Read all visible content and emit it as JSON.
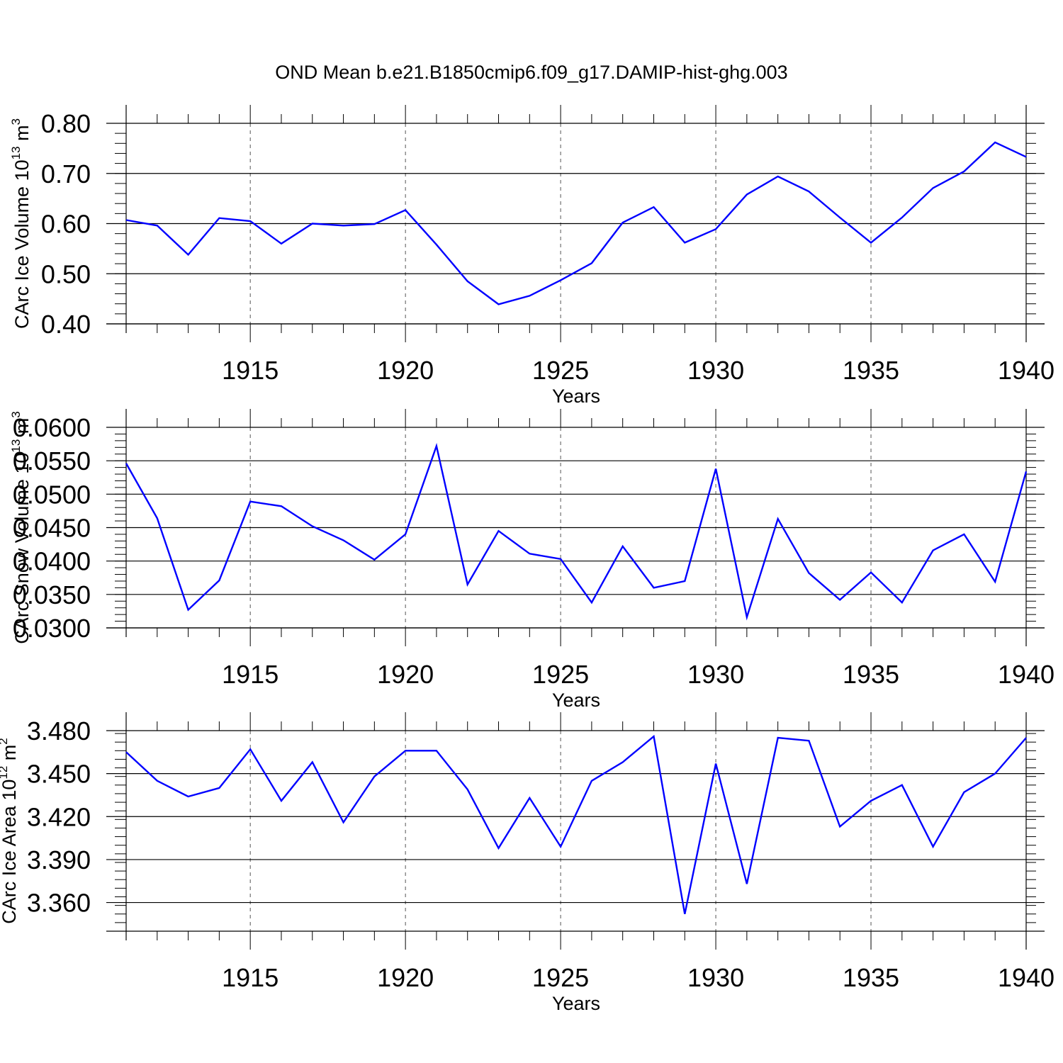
{
  "title": "OND Mean b.e21.B1850cmip6.f09_g17.DAMIP-hist-ghg.003",
  "chart_data": [
    {
      "type": "line",
      "ylabel_main": "CArc Ice Volume 10",
      "ylabel_exp": "13",
      "ylabel_unit": " m",
      "ylabel_unit_exp": "3",
      "xlabel": "Years",
      "ylim": [
        0.4,
        0.8
      ],
      "xlim": [
        1911,
        1940
      ],
      "yticks": [
        0.4,
        0.5,
        0.6,
        0.7,
        0.8
      ],
      "ytick_labels": [
        "0.40",
        "0.50",
        "0.60",
        "0.70",
        "0.80"
      ],
      "xticks": [
        1915,
        1920,
        1925,
        1930,
        1935,
        1940
      ],
      "x": [
        1911,
        1912,
        1913,
        1914,
        1915,
        1916,
        1917,
        1918,
        1919,
        1920,
        1921,
        1922,
        1923,
        1924,
        1925,
        1926,
        1927,
        1928,
        1929,
        1930,
        1931,
        1932,
        1933,
        1934,
        1935,
        1936,
        1937,
        1938,
        1939,
        1940
      ],
      "series": [
        {
          "name": "CArc Ice Volume",
          "color": "#0000ff",
          "values": [
            0.607,
            0.596,
            0.538,
            0.611,
            0.605,
            0.56,
            0.6,
            0.596,
            0.599,
            0.627,
            0.558,
            0.485,
            0.439,
            0.456,
            0.487,
            0.521,
            0.602,
            0.633,
            0.562,
            0.589,
            0.658,
            0.694,
            0.664,
            0.612,
            0.562,
            0.612,
            0.671,
            0.704,
            0.762,
            0.733
          ]
        }
      ]
    },
    {
      "type": "line",
      "ylabel_main": "CArc Snow Volume 10",
      "ylabel_exp": "13",
      "ylabel_unit": " m",
      "ylabel_unit_exp": "3",
      "xlabel": "Years",
      "ylim": [
        0.03,
        0.06
      ],
      "xlim": [
        1911,
        1940
      ],
      "yticks": [
        0.03,
        0.035,
        0.04,
        0.045,
        0.05,
        0.055,
        0.06
      ],
      "ytick_labels": [
        "0.0300",
        "0.0350",
        "0.0400",
        "0.0450",
        "0.0500",
        "0.0550",
        "0.0600"
      ],
      "xticks": [
        1915,
        1920,
        1925,
        1930,
        1935,
        1940
      ],
      "x": [
        1911,
        1912,
        1913,
        1914,
        1915,
        1916,
        1917,
        1918,
        1919,
        1920,
        1921,
        1922,
        1923,
        1924,
        1925,
        1926,
        1927,
        1928,
        1929,
        1930,
        1931,
        1932,
        1933,
        1934,
        1935,
        1936,
        1937,
        1938,
        1939,
        1940
      ],
      "series": [
        {
          "name": "CArc Snow Volume",
          "color": "#0000ff",
          "values": [
            0.0546,
            0.0464,
            0.0327,
            0.0371,
            0.0489,
            0.0482,
            0.0452,
            0.0431,
            0.0402,
            0.044,
            0.0572,
            0.0365,
            0.0445,
            0.0411,
            0.0403,
            0.0338,
            0.0422,
            0.036,
            0.037,
            0.0538,
            0.0316,
            0.0463,
            0.0382,
            0.0342,
            0.0383,
            0.0338,
            0.0416,
            0.044,
            0.0369,
            0.0534
          ]
        }
      ]
    },
    {
      "type": "line",
      "ylabel_main": "CArc Ice Area 10",
      "ylabel_exp": "12",
      "ylabel_unit": " m",
      "ylabel_unit_exp": "2",
      "xlabel": "Years",
      "ylim": [
        3.34,
        3.48
      ],
      "xlim": [
        1911,
        1940
      ],
      "yticks": [
        3.36,
        3.39,
        3.42,
        3.45,
        3.48
      ],
      "ytick_labels": [
        "3.360",
        "3.390",
        "3.420",
        "3.450",
        "3.480"
      ],
      "xticks": [
        1915,
        1920,
        1925,
        1930,
        1935,
        1940
      ],
      "x": [
        1911,
        1912,
        1913,
        1914,
        1915,
        1916,
        1917,
        1918,
        1919,
        1920,
        1921,
        1922,
        1923,
        1924,
        1925,
        1926,
        1927,
        1928,
        1929,
        1930,
        1931,
        1932,
        1933,
        1934,
        1935,
        1936,
        1937,
        1938,
        1939,
        1940
      ],
      "series": [
        {
          "name": "CArc Ice Area",
          "color": "#0000ff",
          "values": [
            3.465,
            3.445,
            3.434,
            3.44,
            3.467,
            3.431,
            3.458,
            3.416,
            3.448,
            3.466,
            3.466,
            3.439,
            3.398,
            3.433,
            3.399,
            3.445,
            3.458,
            3.476,
            3.352,
            3.457,
            3.373,
            3.475,
            3.473,
            3.413,
            3.431,
            3.442,
            3.399,
            3.437,
            3.45,
            3.475
          ]
        }
      ]
    }
  ]
}
